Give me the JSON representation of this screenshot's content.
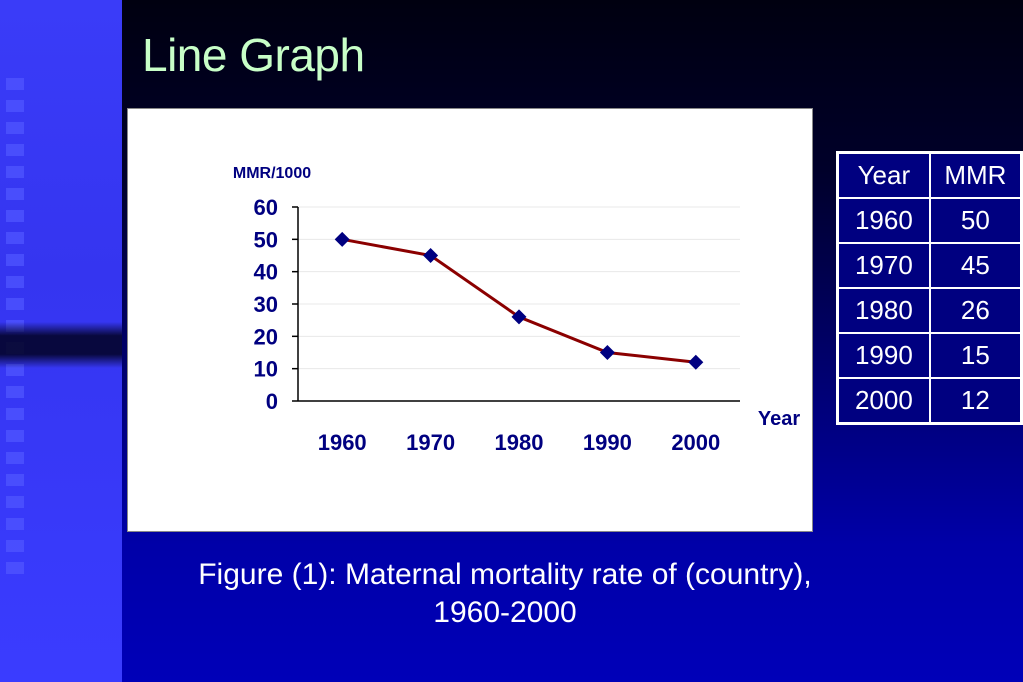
{
  "slide": {
    "title": "Line Graph",
    "caption_line1": "Figure (1): Maternal mortality rate of (country),",
    "caption_line2": "1960-2000"
  },
  "table": {
    "headers": [
      "Year",
      "MMR"
    ],
    "rows": [
      [
        "1960",
        "50"
      ],
      [
        "1970",
        "45"
      ],
      [
        "1980",
        "26"
      ],
      [
        "1990",
        "15"
      ],
      [
        "2000",
        "12"
      ]
    ]
  },
  "chart_data": {
    "type": "line",
    "title": "",
    "xlabel": "Year",
    "ylabel": "MMR/1000",
    "categories": [
      "1960",
      "1970",
      "1980",
      "1990",
      "2000"
    ],
    "series": [
      {
        "values": [
          50,
          45,
          26,
          15,
          12
        ]
      }
    ],
    "ylim": [
      0,
      60
    ],
    "yticks": [
      0,
      10,
      20,
      30,
      40,
      50,
      60
    ],
    "grid": true,
    "colors": {
      "line": "#8b0000",
      "marker": "#000080"
    }
  }
}
